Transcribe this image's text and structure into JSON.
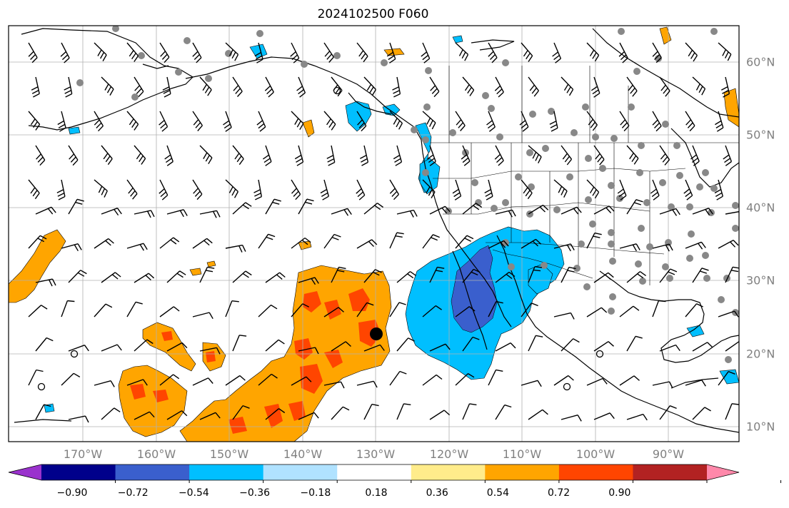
{
  "title": "2024102500 F060",
  "map": {
    "lon_labels": [
      "170°W",
      "160°W",
      "150°W",
      "140°W",
      "130°W",
      "120°W",
      "110°W",
      "100°W",
      "90°W"
    ],
    "lat_labels": [
      "60°N",
      "50°N",
      "40°N",
      "30°N",
      "20°N",
      "10°N"
    ],
    "label_color": "#808080",
    "background": "#ffffff",
    "coast_color": "#000000",
    "grid_color": "#b0b0b0",
    "station_marker_color": "#888888",
    "highlight_marker_color": "#000000"
  },
  "colorbar": {
    "colors": [
      "#9a32cd",
      "#00008b",
      "#3a5fcd",
      "#00bfff",
      "#b0e2ff",
      "#ffffff",
      "#ffec8b",
      "#ffa500",
      "#ff4500",
      "#b22222",
      "#ff88aa"
    ],
    "tick_labels": [
      "−0.90",
      "−0.72",
      "−0.54",
      "−0.36",
      "−0.18",
      "0.18",
      "0.36",
      "0.54",
      "0.72",
      "0.90"
    ]
  }
}
